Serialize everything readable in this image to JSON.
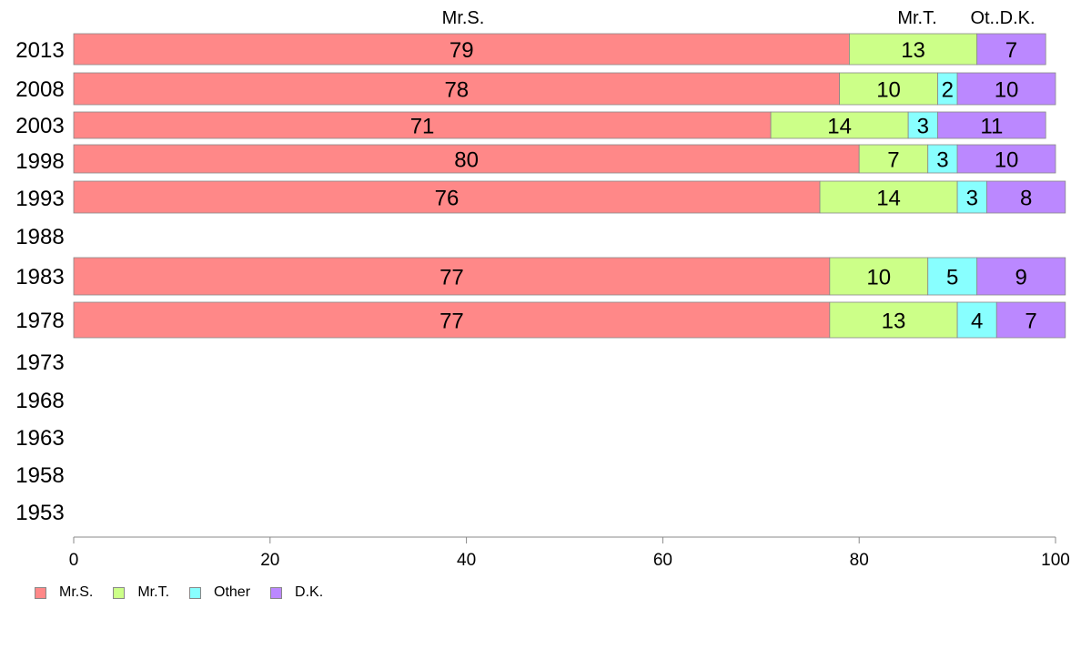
{
  "chart_data": {
    "type": "bar",
    "orientation": "horizontal",
    "stacked": true,
    "categories": [
      "2013",
      "2008",
      "2003",
      "1998",
      "1993",
      "1988",
      "1983",
      "1978",
      "1973",
      "1968",
      "1963",
      "1958",
      "1953"
    ],
    "series": [
      {
        "name": "Mr.S.",
        "color": "#ff8888",
        "values": [
          79,
          78,
          71,
          80,
          76,
          null,
          77,
          77,
          null,
          null,
          null,
          null,
          null
        ]
      },
      {
        "name": "Mr.T.",
        "color": "#ccff88",
        "values": [
          13,
          10,
          14,
          7,
          14,
          null,
          10,
          13,
          null,
          null,
          null,
          null,
          null
        ]
      },
      {
        "name": "Other",
        "color": "#88ffff",
        "values": [
          0,
          2,
          3,
          3,
          3,
          null,
          5,
          4,
          null,
          null,
          null,
          null,
          null
        ]
      },
      {
        "name": "D.K.",
        "color": "#bb88ff",
        "values": [
          7,
          10,
          11,
          10,
          8,
          null,
          9,
          7,
          null,
          null,
          null,
          null,
          null
        ]
      }
    ],
    "top_labels": [
      "Mr.S.",
      "Mr.T.",
      "Ot..D.K."
    ],
    "xlim": [
      0,
      100
    ],
    "xticks": [
      0,
      20,
      40,
      60,
      80,
      100
    ],
    "grid": false,
    "legend_position": "bottom-left"
  }
}
